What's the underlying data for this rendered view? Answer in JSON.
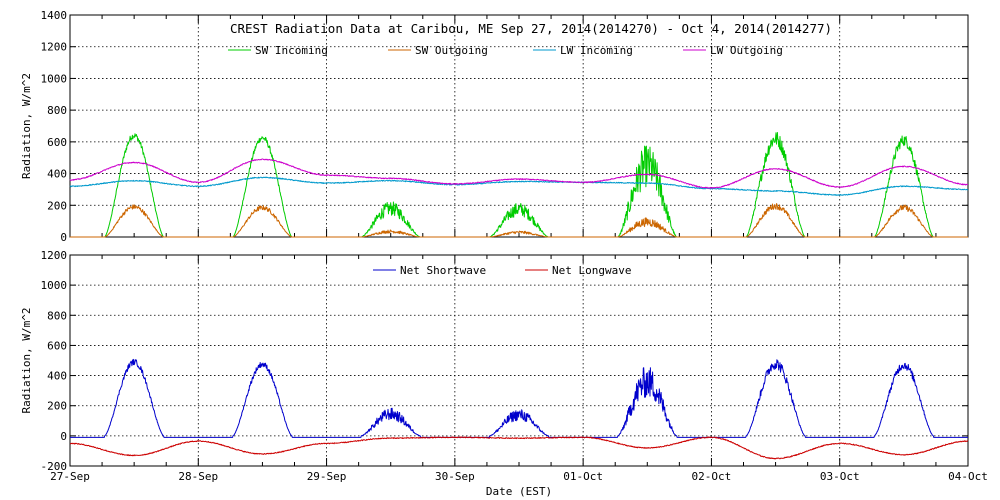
{
  "chart_data": [
    {
      "type": "line",
      "title": "CREST Radiation Data at Caribou, ME   Sep 27, 2014(2014270) - Oct  4, 2014(2014277)",
      "ylabel": "Radiation, W/m^2",
      "ylim": [
        0,
        1400
      ],
      "yticks": [
        0,
        200,
        400,
        600,
        800,
        1000,
        1200,
        1400
      ],
      "xlim_days": [
        0,
        7
      ],
      "grid": true,
      "legend_position": "top",
      "series": [
        {
          "name": "SW Incoming",
          "color": "#00cc00",
          "kind": "sw",
          "peaks": [
            640,
            625,
            180,
            175,
            450,
            620,
            610
          ],
          "noise": [
            0.03,
            0.03,
            0.25,
            0.25,
            0.3,
            0.08,
            0.06
          ]
        },
        {
          "name": "SW Outgoing",
          "color": "#cc6600",
          "kind": "sw",
          "peaks": [
            190,
            185,
            35,
            30,
            95,
            195,
            185
          ],
          "noise": [
            0.08,
            0.08,
            0.3,
            0.3,
            0.3,
            0.1,
            0.1
          ]
        },
        {
          "name": "LW Incoming",
          "color": "#0099cc",
          "kind": "lw",
          "knots": [
            [
              0,
              320
            ],
            [
              0.5,
              355
            ],
            [
              1,
              320
            ],
            [
              1.5,
              375
            ],
            [
              2,
              340
            ],
            [
              2.5,
              355
            ],
            [
              3,
              330
            ],
            [
              3.5,
              350
            ],
            [
              4,
              345
            ],
            [
              4.5,
              340
            ],
            [
              5,
              305
            ],
            [
              5.5,
              290
            ],
            [
              6,
              265
            ],
            [
              6.5,
              320
            ],
            [
              7,
              300
            ]
          ]
        },
        {
          "name": "LW Outgoing",
          "color": "#cc00cc",
          "kind": "lw",
          "knots": [
            [
              0,
              360
            ],
            [
              0.5,
              470
            ],
            [
              1,
              345
            ],
            [
              1.5,
              490
            ],
            [
              2,
              390
            ],
            [
              2.5,
              370
            ],
            [
              3,
              335
            ],
            [
              3.5,
              365
            ],
            [
              4,
              345
            ],
            [
              4.5,
              395
            ],
            [
              5,
              310
            ],
            [
              5.5,
              430
            ],
            [
              6,
              315
            ],
            [
              6.5,
              445
            ],
            [
              7,
              330
            ]
          ]
        }
      ]
    },
    {
      "type": "line",
      "ylabel": "Radiation, W/m^2",
      "xlabel": "Date (EST)",
      "ylim": [
        -200,
        1200
      ],
      "yticks": [
        -200,
        0,
        200,
        400,
        600,
        800,
        1000,
        1200
      ],
      "xlim_days": [
        0,
        7
      ],
      "grid": true,
      "legend_position": "top",
      "series": [
        {
          "name": "Net Shortwave",
          "color": "#0000cc",
          "kind": "sw",
          "base": -10,
          "peaks": [
            490,
            475,
            145,
            140,
            360,
            480,
            470
          ],
          "noise": [
            0.04,
            0.04,
            0.28,
            0.28,
            0.3,
            0.08,
            0.06
          ]
        },
        {
          "name": "Net Longwave",
          "color": "#cc0000",
          "kind": "lw",
          "knots": [
            [
              0,
              -50
            ],
            [
              0.5,
              -130
            ],
            [
              1,
              -35
            ],
            [
              1.5,
              -120
            ],
            [
              2,
              -50
            ],
            [
              2.5,
              -15
            ],
            [
              3,
              -10
            ],
            [
              3.5,
              -15
            ],
            [
              4,
              -10
            ],
            [
              4.5,
              -80
            ],
            [
              5,
              -10
            ],
            [
              5.5,
              -150
            ],
            [
              6,
              -50
            ],
            [
              6.5,
              -125
            ],
            [
              7,
              -35
            ]
          ]
        }
      ]
    }
  ],
  "x_tick_labels": [
    "27-Sep",
    "28-Sep",
    "29-Sep",
    "30-Sep",
    "01-Oct",
    "02-Oct",
    "03-Oct",
    "04-Oct"
  ]
}
